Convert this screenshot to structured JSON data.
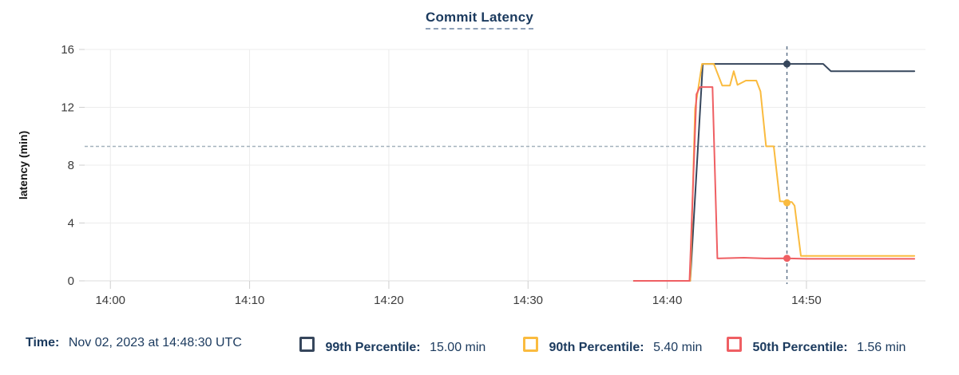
{
  "chart_data": {
    "type": "line",
    "title": "Commit Latency",
    "xlabel": "",
    "ylabel": "latency (min)",
    "x_axis": {
      "domain_min": -1.85,
      "domain_max": 58.55,
      "ticks": [
        {
          "t": 0,
          "label": "14:00"
        },
        {
          "t": 10,
          "label": "14:10"
        },
        {
          "t": 20,
          "label": "14:20"
        },
        {
          "t": 30,
          "label": "14:30"
        },
        {
          "t": 40,
          "label": "14:40"
        },
        {
          "t": 50,
          "label": "14:50"
        }
      ]
    },
    "y_axis": {
      "min": 0,
      "max": 16,
      "ticks": [
        0,
        4,
        8,
        12,
        16
      ]
    },
    "grid": true,
    "threshold_line": {
      "value": 9.3,
      "style": "dashed"
    },
    "cursor": {
      "t": 48.6,
      "time": "14:48:30"
    },
    "series": [
      {
        "name": "99th Percentile",
        "color": "#36465C",
        "cursor_value": 15.0,
        "points": [
          [
            37.6,
            0
          ],
          [
            41.65,
            0
          ],
          [
            42.55,
            15
          ],
          [
            51.2,
            15
          ],
          [
            51.75,
            14.5
          ],
          [
            57.75,
            14.5
          ]
        ]
      },
      {
        "name": "90th Percentile",
        "color": "#FABB3F",
        "cursor_value": 5.4,
        "points": [
          [
            37.6,
            0
          ],
          [
            41.65,
            0
          ],
          [
            42.0,
            11.9
          ],
          [
            42.5,
            15
          ],
          [
            43.35,
            15
          ],
          [
            43.95,
            13.5
          ],
          [
            44.5,
            13.5
          ],
          [
            44.78,
            14.5
          ],
          [
            45.05,
            13.55
          ],
          [
            45.65,
            13.85
          ],
          [
            46.4,
            13.85
          ],
          [
            46.7,
            13.1
          ],
          [
            47.1,
            9.3
          ],
          [
            47.65,
            9.3
          ],
          [
            48.1,
            5.5
          ],
          [
            48.95,
            5.45
          ],
          [
            49.15,
            5.2
          ],
          [
            49.6,
            1.72
          ],
          [
            57.75,
            1.72
          ]
        ]
      },
      {
        "name": "50th Percentile",
        "color": "#EF5F63",
        "cursor_value": 1.56,
        "points": [
          [
            37.6,
            0
          ],
          [
            41.6,
            0
          ],
          [
            42.1,
            12.9
          ],
          [
            42.35,
            13.4
          ],
          [
            43.25,
            13.4
          ],
          [
            43.6,
            1.55
          ],
          [
            45.5,
            1.6
          ],
          [
            47.0,
            1.55
          ],
          [
            48.5,
            1.56
          ],
          [
            50.0,
            1.52
          ],
          [
            57.75,
            1.52
          ]
        ]
      }
    ]
  },
  "legend": {
    "time_label": "Time:",
    "time_value": "Nov 02, 2023 at 14:48:30 UTC",
    "items": [
      {
        "label": "99th Percentile:",
        "value": "15.00 min",
        "color": "#36465C"
      },
      {
        "label": "90th Percentile:",
        "value": "5.40 min",
        "color": "#FABB3F"
      },
      {
        "label": "50th Percentile:",
        "value": "1.56 min",
        "color": "#EF5F63"
      }
    ]
  }
}
